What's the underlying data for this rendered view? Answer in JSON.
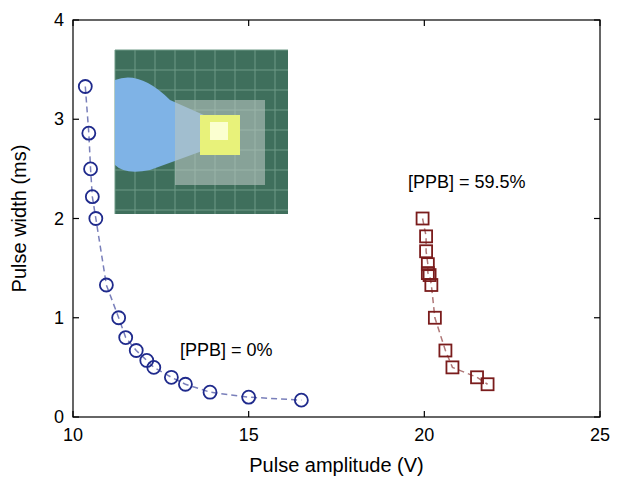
{
  "chart_data": {
    "type": "scatter",
    "x_label": "Pulse amplitude (V)",
    "y_label": "Pulse width (ms)",
    "xlim": [
      10,
      25
    ],
    "xticks": [
      10,
      15,
      20,
      25
    ],
    "ylim": [
      0,
      4
    ],
    "yticks": [
      0,
      1,
      2,
      3,
      4
    ],
    "grid": false,
    "series": [
      {
        "name": "[PPB] = 0%",
        "color": "#1f2a8c",
        "marker": "circle",
        "line_style": "dashed",
        "x": [
          10.35,
          10.45,
          10.5,
          10.55,
          10.65,
          10.95,
          11.3,
          11.5,
          11.8,
          12.1,
          12.3,
          12.8,
          13.2,
          13.9,
          15.0,
          16.5
        ],
        "values": [
          3.33,
          2.86,
          2.5,
          2.22,
          2.0,
          1.33,
          1.0,
          0.8,
          0.67,
          0.57,
          0.5,
          0.4,
          0.33,
          0.25,
          0.2,
          0.17
        ]
      },
      {
        "name": "[PPB] = 59.5%",
        "color": "#7a1c1c",
        "marker": "square",
        "line_style": "dashed",
        "x": [
          19.95,
          20.05,
          20.05,
          20.1,
          20.1,
          20.15,
          20.2,
          20.3,
          20.6,
          20.8,
          21.5,
          21.8
        ],
        "values": [
          2.0,
          1.82,
          1.67,
          1.54,
          1.45,
          1.43,
          1.33,
          1.0,
          0.67,
          0.5,
          0.4,
          0.33
        ]
      }
    ]
  }
}
